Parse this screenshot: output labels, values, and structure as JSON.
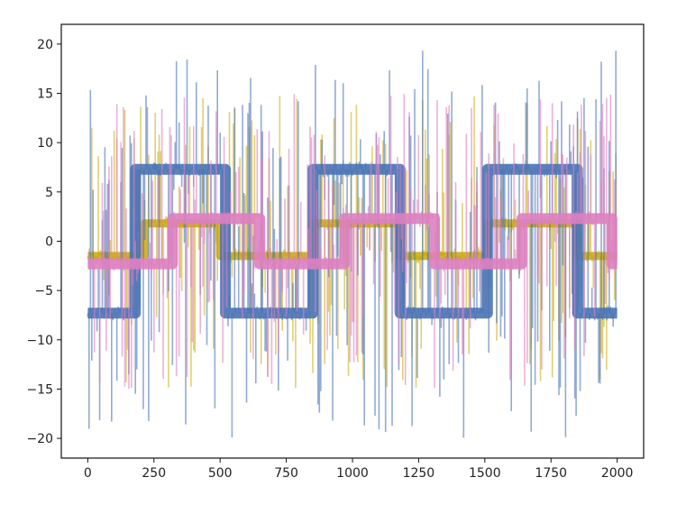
{
  "chart_data": {
    "type": "line",
    "title": "",
    "xlabel": "",
    "ylabel": "",
    "xlim": [
      -100,
      2100
    ],
    "ylim": [
      -22,
      22
    ],
    "x_ticks": [
      0,
      250,
      500,
      750,
      1000,
      1250,
      1500,
      1750,
      2000
    ],
    "y_ticks": [
      -20,
      -15,
      -10,
      -5,
      0,
      5,
      10,
      15,
      20
    ],
    "grid": false,
    "legend": "none",
    "series": [
      {
        "color": "#c8a800",
        "opacity": 0.55,
        "steps": [
          [
            0,
            214,
            -1.5
          ],
          [
            214,
            500,
            1.8
          ],
          [
            500,
            850,
            -1.5
          ],
          [
            850,
            1180,
            1.8
          ],
          [
            1180,
            1510,
            -1.5
          ],
          [
            1510,
            1850,
            1.8
          ],
          [
            1850,
            2000,
            -1.5
          ]
        ],
        "spike_range": [
          -15,
          15
        ]
      },
      {
        "color": "#4a73b5",
        "opacity": 0.6,
        "steps": [
          [
            0,
            180,
            -7.3
          ],
          [
            180,
            520,
            7.3
          ],
          [
            520,
            850,
            -7.3
          ],
          [
            850,
            1180,
            7.3
          ],
          [
            1180,
            1510,
            -7.3
          ],
          [
            1510,
            1850,
            7.3
          ],
          [
            1850,
            2000,
            -7.3
          ]
        ],
        "spike_range": [
          -20,
          19.5
        ]
      },
      {
        "color": "#dd7fc0",
        "opacity": 0.6,
        "steps": [
          [
            0,
            320,
            -2.3
          ],
          [
            320,
            650,
            2.3
          ],
          [
            650,
            970,
            -2.3
          ],
          [
            970,
            1310,
            2.3
          ],
          [
            1310,
            1640,
            -2.3
          ],
          [
            1640,
            1980,
            2.3
          ],
          [
            1980,
            2000,
            -2.3
          ]
        ],
        "spike_range": [
          -15,
          15
        ]
      }
    ]
  }
}
